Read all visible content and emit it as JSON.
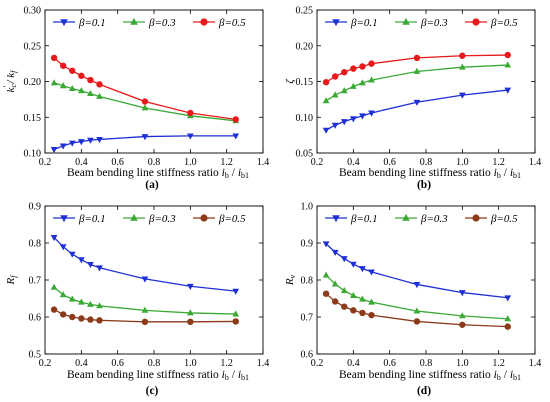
{
  "chart_data": [
    {
      "type": "line",
      "panel_label": "(a)",
      "ylabel": "k'c / kf",
      "xlabel": "Beam bending line stiffness ratio  ib / ib1",
      "xlim": [
        0.2,
        1.4
      ],
      "ylim": [
        0.1,
        0.3
      ],
      "xticks": [
        "0.2",
        "0.4",
        "0.6",
        "0.8",
        "1.0",
        "1.2",
        "1.4"
      ],
      "yticks": [
        "0.10",
        "0.15",
        "0.20",
        "0.25",
        "0.30"
      ],
      "grid": false,
      "legend": "top",
      "series": [
        {
          "name": "β=0.1",
          "color": "#1f2fd6",
          "marker": "triangle-down",
          "x": [
            0.25,
            0.3,
            0.35,
            0.4,
            0.45,
            0.5,
            0.75,
            1.0,
            1.25
          ],
          "y": [
            0.105,
            0.11,
            0.114,
            0.116,
            0.118,
            0.119,
            0.123,
            0.124,
            0.124
          ]
        },
        {
          "name": "β=0.3",
          "color": "#3aaa35",
          "marker": "triangle-up",
          "x": [
            0.25,
            0.3,
            0.35,
            0.4,
            0.45,
            0.5,
            0.75,
            1.0,
            1.25
          ],
          "y": [
            0.198,
            0.194,
            0.19,
            0.187,
            0.183,
            0.179,
            0.163,
            0.152,
            0.145
          ]
        },
        {
          "name": "β=0.5",
          "color": "#e8191b",
          "marker": "circle",
          "x": [
            0.25,
            0.3,
            0.35,
            0.4,
            0.45,
            0.5,
            0.75,
            1.0,
            1.25
          ],
          "y": [
            0.233,
            0.222,
            0.215,
            0.208,
            0.202,
            0.196,
            0.172,
            0.156,
            0.147
          ]
        }
      ]
    },
    {
      "type": "line",
      "panel_label": "(b)",
      "ylabel": "ζ",
      "xlabel": "Beam bending line stiffness ratio  ib / ib1",
      "xlim": [
        0.2,
        1.4
      ],
      "ylim": [
        0.05,
        0.25
      ],
      "xticks": [
        "0.2",
        "0.4",
        "0.6",
        "0.8",
        "1.0",
        "1.2",
        "1.4"
      ],
      "yticks": [
        "0.05",
        "0.10",
        "0.15",
        "0.20",
        "0.25"
      ],
      "grid": false,
      "legend": "top",
      "series": [
        {
          "name": "β=0.1",
          "color": "#1f2fd6",
          "marker": "triangle-down",
          "x": [
            0.25,
            0.3,
            0.35,
            0.4,
            0.45,
            0.5,
            0.75,
            1.0,
            1.25
          ],
          "y": [
            0.082,
            0.089,
            0.094,
            0.098,
            0.102,
            0.106,
            0.121,
            0.131,
            0.138
          ]
        },
        {
          "name": "β=0.3",
          "color": "#3aaa35",
          "marker": "triangle-up",
          "x": [
            0.25,
            0.3,
            0.35,
            0.4,
            0.45,
            0.5,
            0.75,
            1.0,
            1.25
          ],
          "y": [
            0.123,
            0.131,
            0.137,
            0.143,
            0.148,
            0.152,
            0.164,
            0.17,
            0.173
          ]
        },
        {
          "name": "β=0.5",
          "color": "#e8191b",
          "marker": "circle",
          "x": [
            0.25,
            0.3,
            0.35,
            0.4,
            0.45,
            0.5,
            0.75,
            1.0,
            1.25
          ],
          "y": [
            0.149,
            0.157,
            0.163,
            0.168,
            0.171,
            0.175,
            0.183,
            0.186,
            0.187
          ]
        }
      ]
    },
    {
      "type": "line",
      "panel_label": "(c)",
      "ylabel": "Rf",
      "xlabel": "Beam bending line stiffness ratio  ib / ib1",
      "xlim": [
        0.2,
        1.4
      ],
      "ylim": [
        0.5,
        0.9
      ],
      "xticks": [
        "0.2",
        "0.4",
        "0.6",
        "0.8",
        "1.0",
        "1.2",
        "1.4"
      ],
      "yticks": [
        "0.5",
        "0.6",
        "0.7",
        "0.8",
        "0.9"
      ],
      "grid": false,
      "legend": "top",
      "series": [
        {
          "name": "β=0.1",
          "color": "#1f2fd6",
          "marker": "triangle-down",
          "x": [
            0.25,
            0.3,
            0.35,
            0.4,
            0.45,
            0.5,
            0.75,
            1.0,
            1.25
          ],
          "y": [
            0.815,
            0.79,
            0.77,
            0.755,
            0.742,
            0.733,
            0.703,
            0.683,
            0.67
          ]
        },
        {
          "name": "β=0.3",
          "color": "#3aaa35",
          "marker": "triangle-up",
          "x": [
            0.25,
            0.3,
            0.35,
            0.4,
            0.45,
            0.5,
            0.75,
            1.0,
            1.25
          ],
          "y": [
            0.68,
            0.66,
            0.648,
            0.64,
            0.634,
            0.63,
            0.618,
            0.611,
            0.608
          ]
        },
        {
          "name": "β=0.5",
          "color": "#8b3a1a",
          "marker": "circle",
          "x": [
            0.25,
            0.3,
            0.35,
            0.4,
            0.45,
            0.5,
            0.75,
            1.0,
            1.25
          ],
          "y": [
            0.62,
            0.607,
            0.6,
            0.596,
            0.593,
            0.591,
            0.587,
            0.587,
            0.588
          ]
        }
      ]
    },
    {
      "type": "line",
      "panel_label": "(d)",
      "ylabel": "Rv",
      "xlabel": "Beam bending line stiffness ratio  ib / ib1",
      "xlim": [
        0.2,
        1.4
      ],
      "ylim": [
        0.6,
        1.0
      ],
      "xticks": [
        "0.2",
        "0.4",
        "0.6",
        "0.8",
        "1.0",
        "1.2",
        "1.4"
      ],
      "yticks": [
        "0.6",
        "0.7",
        "0.8",
        "0.9",
        "1.0"
      ],
      "grid": false,
      "legend": "top",
      "series": [
        {
          "name": "β=0.1",
          "color": "#1f2fd6",
          "marker": "triangle-down",
          "x": [
            0.25,
            0.3,
            0.35,
            0.4,
            0.45,
            0.5,
            0.75,
            1.0,
            1.25
          ],
          "y": [
            0.898,
            0.875,
            0.858,
            0.843,
            0.831,
            0.822,
            0.788,
            0.766,
            0.752
          ]
        },
        {
          "name": "β=0.3",
          "color": "#3aaa35",
          "marker": "triangle-up",
          "x": [
            0.25,
            0.3,
            0.35,
            0.4,
            0.45,
            0.5,
            0.75,
            1.0,
            1.25
          ],
          "y": [
            0.813,
            0.789,
            0.771,
            0.758,
            0.748,
            0.74,
            0.716,
            0.703,
            0.695
          ]
        },
        {
          "name": "β=0.5",
          "color": "#8b3a1a",
          "marker": "circle",
          "x": [
            0.25,
            0.3,
            0.35,
            0.4,
            0.45,
            0.5,
            0.75,
            1.0,
            1.25
          ],
          "y": [
            0.763,
            0.742,
            0.728,
            0.718,
            0.711,
            0.705,
            0.688,
            0.679,
            0.674
          ]
        }
      ]
    }
  ]
}
